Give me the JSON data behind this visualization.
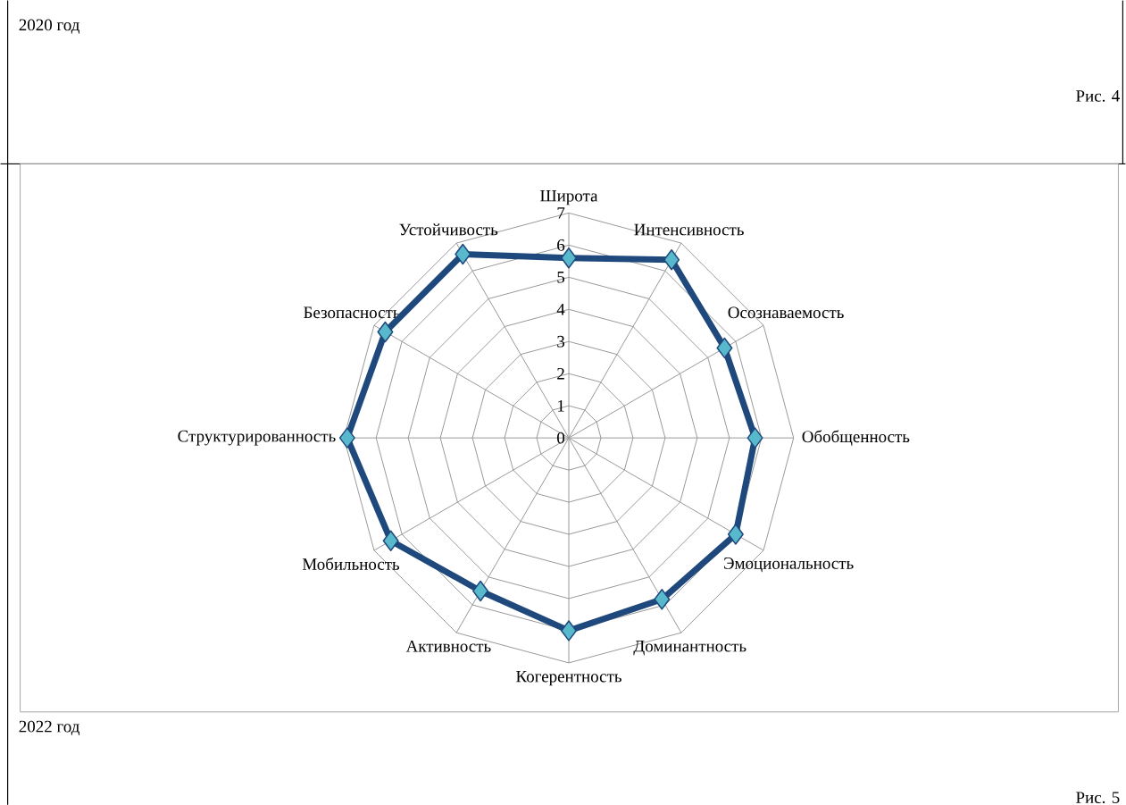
{
  "chart_data": {
    "type": "radar",
    "categories": [
      "Широта",
      "Интенсивность",
      "Осознаваемость",
      "Обобщенность",
      "Эмоциональность",
      "Доминантность",
      "Когерентность",
      "Активность",
      "Мобильность",
      "Структурированность",
      "Безопасность",
      "Устойчивость"
    ],
    "series": [
      {
        "color": "#1f497d",
        "values": [
          5.6,
          6.4,
          5.6,
          5.8,
          6.0,
          5.8,
          6.0,
          5.5,
          6.4,
          6.9,
          6.6,
          6.6
        ]
      }
    ],
    "ylim": [
      0,
      7
    ],
    "yticks": [
      0,
      1,
      2,
      3,
      4,
      5,
      6,
      7
    ],
    "grid": true,
    "marker": "diamond",
    "line_style": "solid",
    "annotations": [
      "2020 год",
      "Рис. 4",
      "2022 год",
      "Рис. 5"
    ]
  }
}
